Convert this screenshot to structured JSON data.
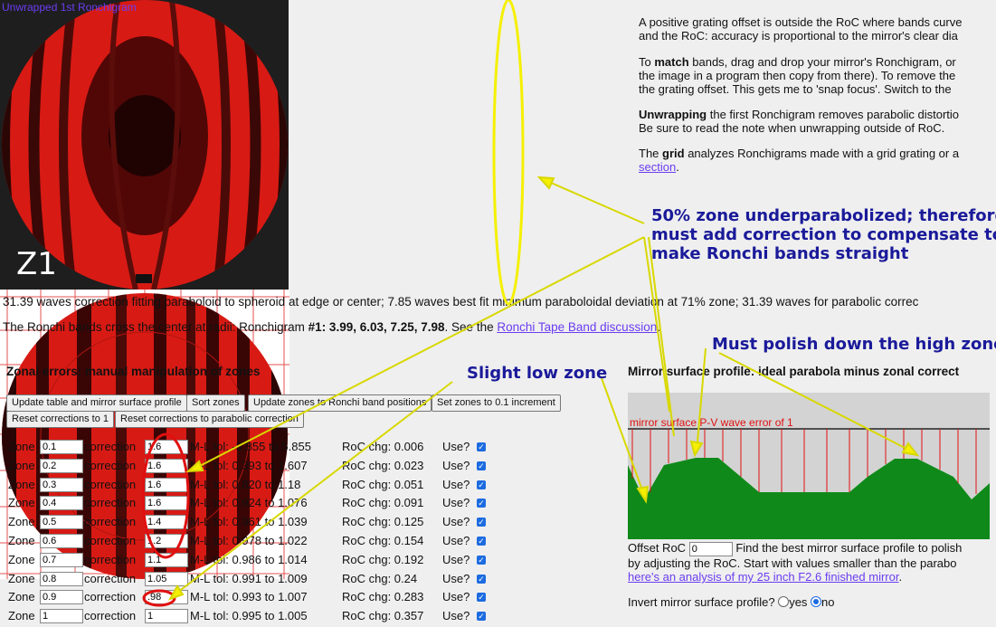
{
  "left_image": {
    "label": "Z1"
  },
  "right_image": {
    "title": "Unwrapped 1st Ronchigram"
  },
  "side_text": {
    "p1_line1": "A positive grating offset is outside the RoC where bands curve",
    "p1_line2": "and the RoC: accuracy is proportional to the mirror's clear dia",
    "p2_line1_a": "To ",
    "p2_line1_b": "match",
    "p2_line1_c": " bands, drag and drop your mirror's Ronchigram, or",
    "p2_line2": "the image in a program then copy from there). To remove the",
    "p2_line3": "the grating offset. This gets me to 'snap focus'. Switch to the",
    "p3_line1_a": "Unwrapping",
    "p3_line1_b": " the first Ronchigram removes parabolic distortio",
    "p3_line2": "Be sure to read the note when unwrapping outside of RoC.",
    "p4_line1_a": "The ",
    "p4_line1_b": "grid",
    "p4_line1_c": " analyzes Ronchigrams made with a grid grating or a",
    "p4_link": "section",
    "p4_end": "."
  },
  "correction_line": "31.39 waves correction fitting paraboloid to spheroid at edge or center; 7.85 waves best fit minimum paraboloidal deviation at 71% zone; 31.39 waves for parabolic correc",
  "bands_line": {
    "prefix": "The Ronchi bands cross the center at radii: Ronchigram ",
    "bold": "#1: 3.99, 6.03, 7.25, 7.98",
    "mid": ". See the ",
    "link": "Ronchi Tape Band discussion",
    "end": "."
  },
  "zonal": {
    "title": "Zonal errors: manual manipulation of zones",
    "buttons": [
      "Update table and mirror surface profile",
      "Sort zones",
      "Update zones to Ronchi band positions",
      "Set zones to 0.1 increment",
      "Reset corrections to 1",
      "Reset corrections to parabolic correction"
    ],
    "labels": {
      "zone": "Zone",
      "correction": "correction",
      "use": "Use?"
    },
    "rows": [
      {
        "zone": "0.1",
        "corr": "1.6",
        "ml": "M-L tol: -3.855 to 5.855",
        "roc": "RoC chg: 0.006"
      },
      {
        "zone": "0.2",
        "corr": "1.6",
        "ml": "M-L tol: 0.393 to 1.607",
        "roc": "RoC chg: 0.023"
      },
      {
        "zone": "0.3",
        "corr": "1.6",
        "ml": "M-L tol: 0.820 to 1.18",
        "roc": "RoC chg: 0.051"
      },
      {
        "zone": "0.4",
        "corr": "1.6",
        "ml": "M-L tol: 0.924 to 1.076",
        "roc": "RoC chg: 0.091"
      },
      {
        "zone": "0.5",
        "corr": "1.4",
        "ml": "M-L tol: 0.961 to 1.039",
        "roc": "RoC chg: 0.125"
      },
      {
        "zone": "0.6",
        "corr": "1.2",
        "ml": "M-L tol: 0.978 to 1.022",
        "roc": "RoC chg: 0.154"
      },
      {
        "zone": "0.7",
        "corr": "1.1",
        "ml": "M-L tol: 0.986 to 1.014",
        "roc": "RoC chg: 0.192"
      },
      {
        "zone": "0.8",
        "corr": "1.05",
        "ml": "M-L tol: 0.991 to 1.009",
        "roc": "RoC chg: 0.24"
      },
      {
        "zone": "0.9",
        "corr": ".98",
        "ml": "M-L tol: 0.993 to 1.007",
        "roc": "RoC chg: 0.283"
      },
      {
        "zone": "1",
        "corr": "1",
        "ml": "M-L tol: 0.995 to 1.005",
        "roc": "RoC chg: 0.357"
      }
    ]
  },
  "profile": {
    "title": "Mirror surface profile: ideal parabola minus zonal correct",
    "chart_label": "mirror surface P-V wave error of 1",
    "offset_label": "Offset RoC",
    "offset_value": "0",
    "offset_text": "Find the best mirror surface profile to polish",
    "line2": "by adjusting the RoC. Start with values smaller than the parabo",
    "link": "here's an analysis of my 25 inch F2.6 finished mirror",
    "link_end": ".",
    "invert_label": "Invert mirror surface profile?",
    "yes": "yes",
    "no": "no"
  },
  "annotations": {
    "a1_line1": "50% zone underparabolized; therefore",
    "a1_line2": "must add correction to compensate to",
    "a1_line3": "make Ronchi bands straight",
    "a2": "Must polish down the high zones",
    "a3": "Slight low zone"
  },
  "colors": {
    "accent": "#1a1a9a",
    "link": "#6b3df0",
    "band_red": "#d81a14",
    "profile_green": "#0f8a1a"
  }
}
